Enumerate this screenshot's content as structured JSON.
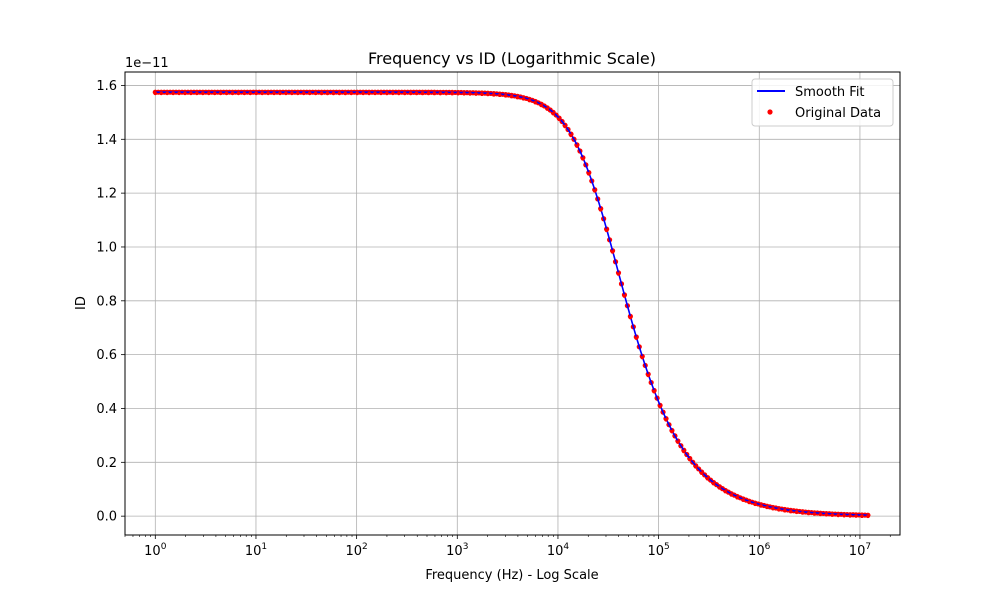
{
  "chart_data": {
    "type": "line",
    "title": "Frequency vs ID (Logarithmic Scale)",
    "xlabel": "Frequency (Hz) - Log Scale",
    "ylabel": "ID",
    "y_offset_label": "1e−11",
    "xscale": "log",
    "xlim": [
      0.5,
      25000000
    ],
    "ylim": [
      -0.07,
      1.65
    ],
    "x_ticks": [
      {
        "value": 1,
        "base": "10",
        "exp": "0"
      },
      {
        "value": 10,
        "base": "10",
        "exp": "1"
      },
      {
        "value": 100,
        "base": "10",
        "exp": "2"
      },
      {
        "value": 1000,
        "base": "10",
        "exp": "3"
      },
      {
        "value": 10000,
        "base": "10",
        "exp": "4"
      },
      {
        "value": 100000,
        "base": "10",
        "exp": "5"
      },
      {
        "value": 1000000,
        "base": "10",
        "exp": "6"
      },
      {
        "value": 10000000,
        "base": "10",
        "exp": "7"
      }
    ],
    "y_ticks": [
      {
        "value": 0.0,
        "label": "0.0"
      },
      {
        "value": 0.2,
        "label": "0.2"
      },
      {
        "value": 0.4,
        "label": "0.4"
      },
      {
        "value": 0.6,
        "label": "0.6"
      },
      {
        "value": 0.8,
        "label": "0.8"
      },
      {
        "value": 1.0,
        "label": "1.0"
      },
      {
        "value": 1.2,
        "label": "1.2"
      },
      {
        "value": 1.4,
        "label": "1.4"
      },
      {
        "value": 1.6,
        "label": "1.6"
      }
    ],
    "grid": true,
    "legend_position": "top-right",
    "model": {
      "plateau": 1.575,
      "corner_hz": 28000,
      "f_min": 1,
      "f_max": 12000000,
      "n_points": 240
    },
    "series": [
      {
        "name": "Smooth Fit",
        "kind": "line",
        "color": "#0000ff"
      },
      {
        "name": "Original Data",
        "kind": "scatter",
        "color": "#ff0000"
      }
    ]
  }
}
